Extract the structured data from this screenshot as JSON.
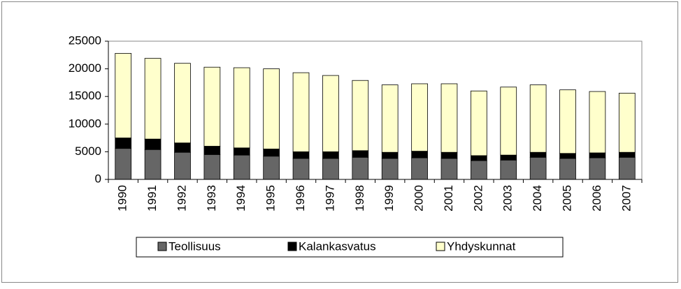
{
  "chart_data": {
    "type": "bar",
    "stacked": true,
    "categories": [
      "1990",
      "1991",
      "1992",
      "1993",
      "1994",
      "1995",
      "1996",
      "1997",
      "1998",
      "1999",
      "2000",
      "2001",
      "2002",
      "2003",
      "2004",
      "2005",
      "2006",
      "2007"
    ],
    "series": [
      {
        "name": "Teollisuus",
        "color": "#666666",
        "values": [
          5600,
          5400,
          4900,
          4500,
          4400,
          4200,
          3800,
          3800,
          4000,
          3800,
          3900,
          3800,
          3400,
          3500,
          4000,
          3800,
          3900,
          4000
        ]
      },
      {
        "name": "Kalankasvatus",
        "color": "#000000",
        "values": [
          1900,
          1900,
          1700,
          1500,
          1300,
          1300,
          1200,
          1200,
          1200,
          1100,
          1200,
          1100,
          900,
          900,
          900,
          900,
          900,
          900
        ]
      },
      {
        "name": "Yhdyskunnat",
        "color": "#ffffcc",
        "values": [
          15300,
          14600,
          14400,
          14300,
          14500,
          14500,
          14300,
          13800,
          12700,
          12200,
          12200,
          12400,
          11700,
          12300,
          12200,
          11500,
          11100,
          10700
        ]
      }
    ],
    "ylim": [
      0,
      25000
    ],
    "yticks": [
      0,
      5000,
      10000,
      15000,
      20000,
      25000
    ],
    "grid": false,
    "legend": "bottom"
  }
}
